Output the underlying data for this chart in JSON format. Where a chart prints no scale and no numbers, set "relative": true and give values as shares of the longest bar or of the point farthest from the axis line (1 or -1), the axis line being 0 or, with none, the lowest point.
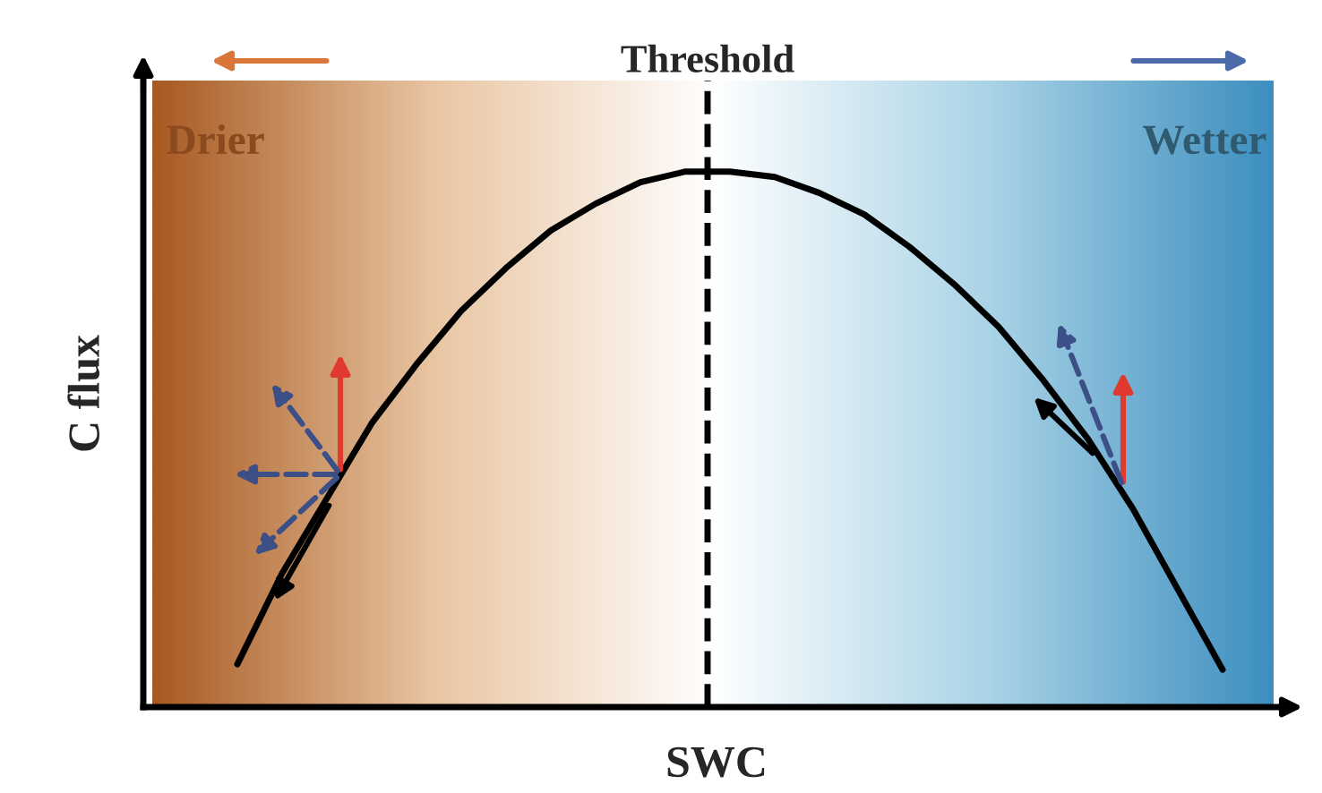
{
  "chart_data": {
    "type": "line",
    "relative": true,
    "xlabel": "SWC",
    "ylabel": "C flux",
    "categories": [
      null,
      null,
      null,
      null,
      null,
      null,
      null,
      null,
      null,
      null,
      null,
      null,
      null,
      null,
      null,
      null,
      null,
      null,
      null,
      null,
      null,
      null,
      null
    ],
    "series": [
      {
        "color": "#000000",
        "values": [
          0.08,
          0.25,
          0.39,
          0.53,
          0.64,
          0.74,
          0.82,
          0.89,
          0.94,
          0.98,
          1.0,
          1.0,
          0.99,
          0.96,
          0.92,
          0.86,
          0.79,
          0.71,
          0.61,
          0.5,
          0.37,
          0.22,
          0.07
        ]
      }
    ],
    "annotations": [
      "Drier",
      "Wetter",
      "Threshold"
    ],
    "marker": "none",
    "line_style": "solid",
    "grid": false
  }
}
